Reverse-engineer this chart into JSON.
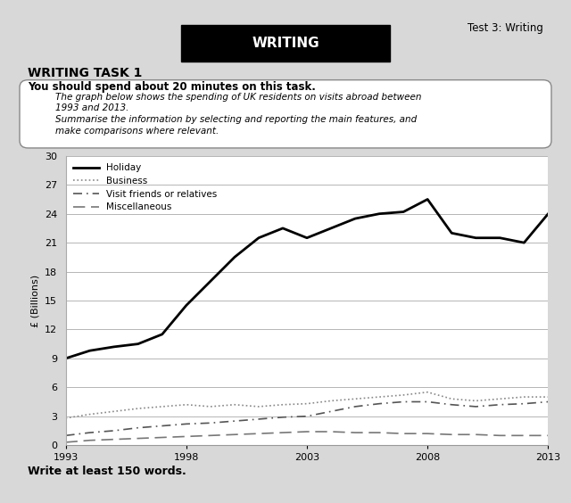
{
  "years": [
    1993,
    1994,
    1995,
    1996,
    1997,
    1998,
    1999,
    2000,
    2001,
    2002,
    2003,
    2004,
    2005,
    2006,
    2007,
    2008,
    2009,
    2010,
    2011,
    2012,
    2013
  ],
  "holiday": [
    9.0,
    9.8,
    10.2,
    10.5,
    11.5,
    14.5,
    17.0,
    19.5,
    21.5,
    22.5,
    21.5,
    22.5,
    23.5,
    24.0,
    24.2,
    25.5,
    22.0,
    21.5,
    21.5,
    21.0,
    24.0
  ],
  "business": [
    2.8,
    3.2,
    3.5,
    3.8,
    4.0,
    4.2,
    4.0,
    4.2,
    4.0,
    4.2,
    4.3,
    4.6,
    4.8,
    5.0,
    5.2,
    5.5,
    4.8,
    4.6,
    4.8,
    5.0,
    5.0
  ],
  "visit_friends": [
    1.0,
    1.3,
    1.5,
    1.8,
    2.0,
    2.2,
    2.3,
    2.5,
    2.7,
    2.9,
    3.0,
    3.5,
    4.0,
    4.3,
    4.5,
    4.5,
    4.2,
    4.0,
    4.2,
    4.3,
    4.5
  ],
  "miscellaneous": [
    0.3,
    0.5,
    0.6,
    0.7,
    0.8,
    0.9,
    1.0,
    1.1,
    1.2,
    1.3,
    1.4,
    1.4,
    1.3,
    1.3,
    1.2,
    1.2,
    1.1,
    1.1,
    1.0,
    1.0,
    1.0
  ],
  "ylim": [
    0,
    30
  ],
  "yticks": [
    0,
    3,
    6,
    9,
    12,
    15,
    18,
    21,
    24,
    27,
    30
  ],
  "xticks": [
    1993,
    1998,
    2003,
    2008,
    2013
  ],
  "ylabel": "£ (Billions)",
  "page_bg": "#d8d8d8",
  "header_text": "Test 3: Writing",
  "title_box_text": "WRITING",
  "task_title": "WRITING TASK 1",
  "instruction": "You should spend about 20 minutes on this task.",
  "box_line1": "The graph below shows the spending of UK residents on visits abroad between",
  "box_line2": "1993 and 2013.",
  "box_line3": "Summarise the information by selecting and reporting the main features, and",
  "box_line4": "make comparisons where relevant.",
  "footer": "Write at least 150 words."
}
